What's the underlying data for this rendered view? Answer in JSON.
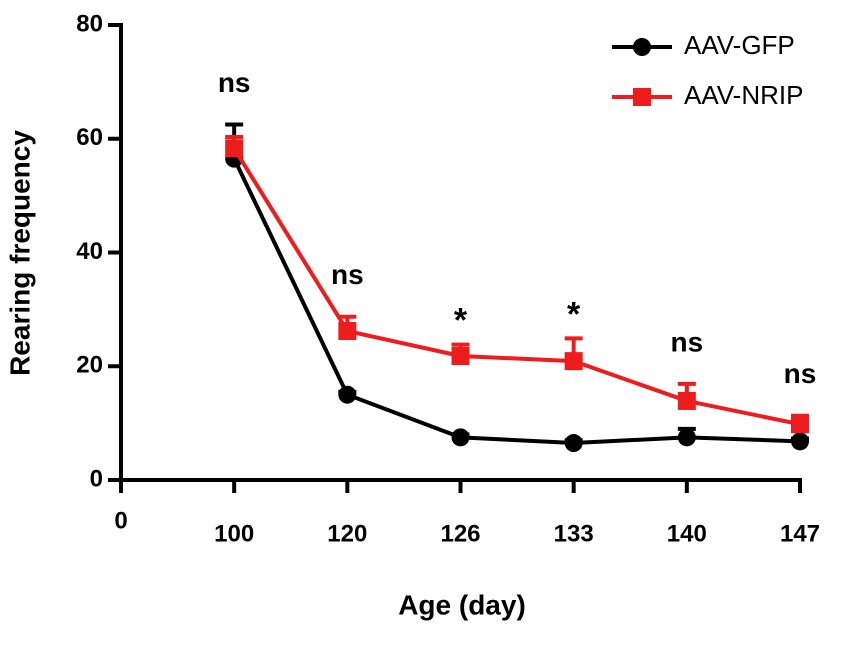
{
  "chart_data": {
    "type": "line",
    "x_label": "Age (day)",
    "y_label": "Rearing frequency",
    "categories": [
      "0",
      "100",
      "120",
      "126",
      "133",
      "140",
      "147"
    ],
    "series": [
      {
        "name": "AAV-GFP",
        "color": "#000000",
        "marker": "circle",
        "values": [
          null,
          56.5,
          15,
          7.5,
          6.5,
          7.5,
          6.8
        ],
        "errors": [
          null,
          6,
          0.5,
          0.5,
          0.5,
          1.5,
          0.5
        ]
      },
      {
        "name": "AAV-NRIP",
        "color": "#ee1c1c",
        "marker": "square",
        "values": [
          null,
          58.3,
          26.2,
          21.8,
          20.9,
          13.9,
          9.8
        ],
        "errors": [
          null,
          2,
          2.5,
          2,
          4,
          3,
          1.5
        ]
      }
    ],
    "annotations": [
      null,
      "ns",
      "ns",
      "*",
      "*",
      "ns",
      "ns"
    ],
    "ylim": [
      0,
      80
    ],
    "yticks": [
      0,
      20,
      40,
      60,
      80
    ],
    "legend": "top-right"
  }
}
